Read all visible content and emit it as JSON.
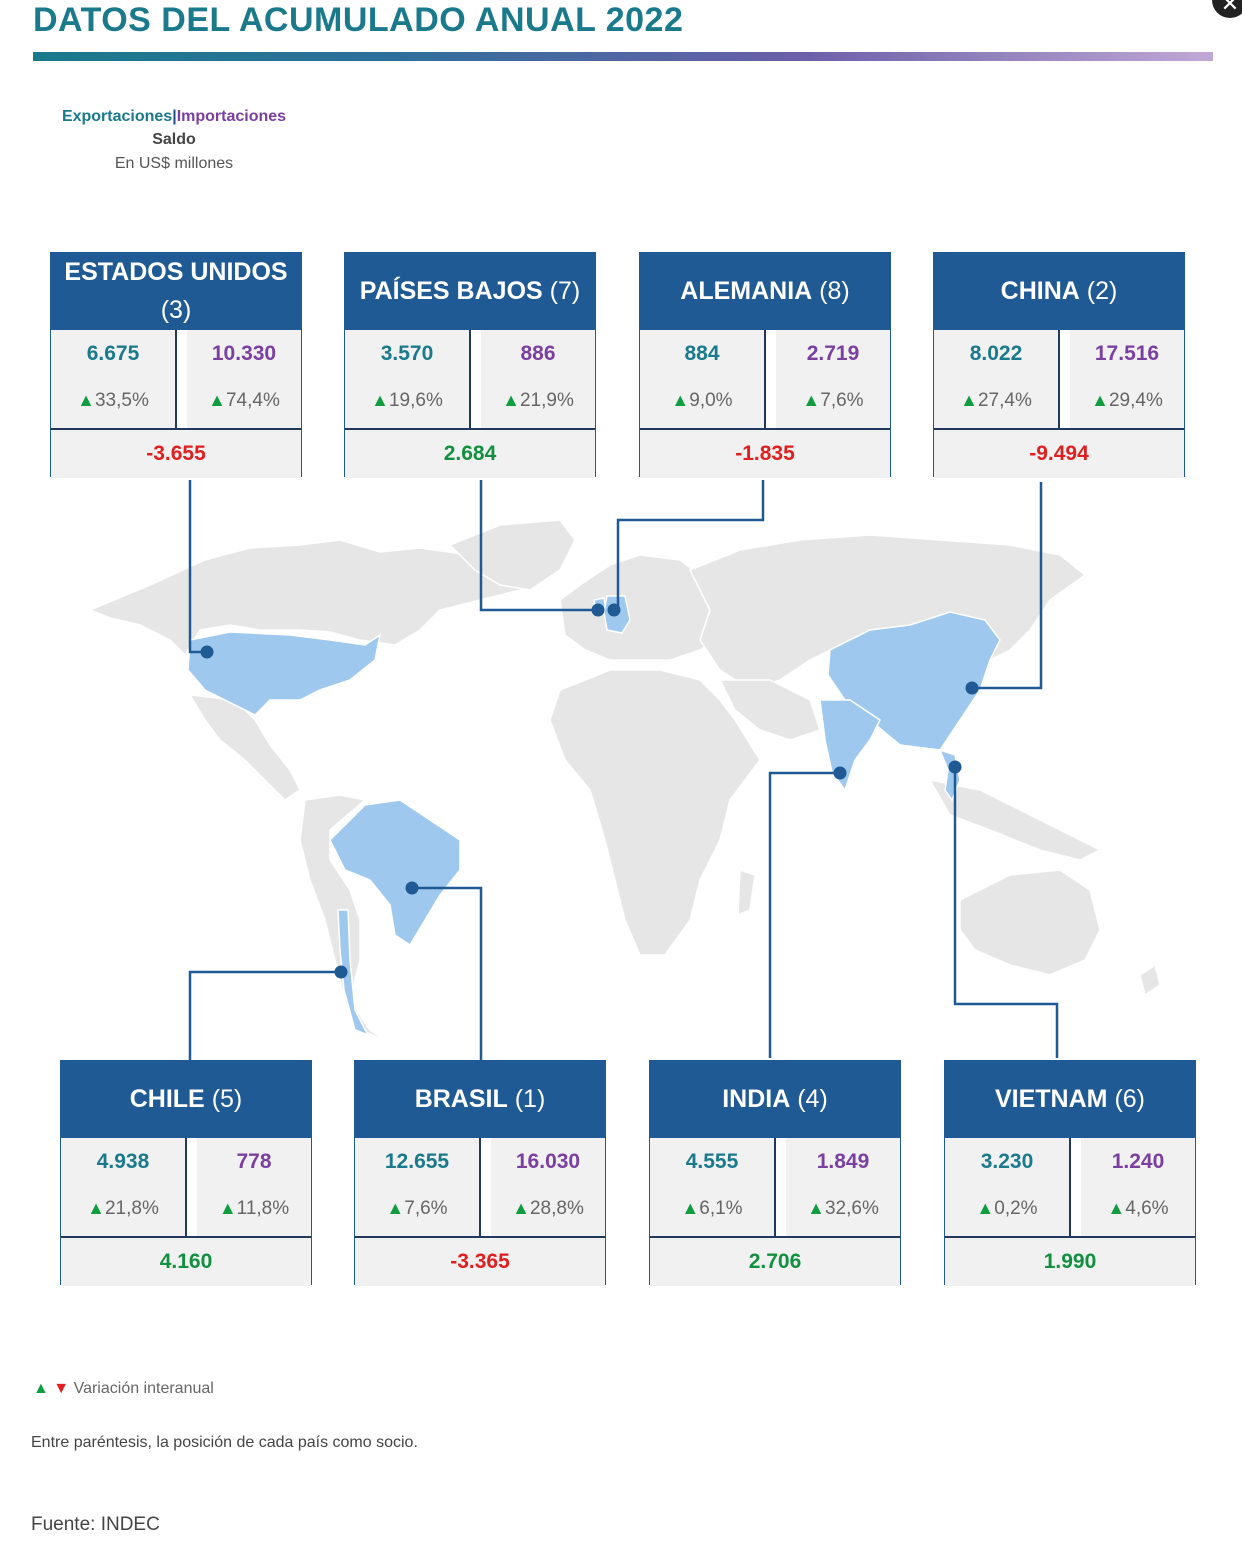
{
  "title": "DATOS DEL ACUMULADO ANUAL 2022",
  "legend": {
    "exports": "Exportaciones",
    "separator": "|",
    "imports": "Importaciones",
    "balance": "Saldo",
    "unit": "En US$ millones"
  },
  "countries": [
    {
      "name": "ESTADOS UNIDOS",
      "rank": "(3)",
      "exports": "6.675",
      "exports_var": "33,5%",
      "imports": "10.330",
      "imports_var": "74,4%",
      "balance": "-3.655",
      "balance_sign": "neg"
    },
    {
      "name": "PAÍSES BAJOS",
      "rank": "(7)",
      "exports": "3.570",
      "exports_var": "19,6%",
      "imports": "886",
      "imports_var": "21,9%",
      "balance": "2.684",
      "balance_sign": "pos"
    },
    {
      "name": "ALEMANIA",
      "rank": "(8)",
      "exports": "884",
      "exports_var": "9,0%",
      "imports": "2.719",
      "imports_var": "7,6%",
      "balance": "-1.835",
      "balance_sign": "neg"
    },
    {
      "name": "CHINA",
      "rank": "(2)",
      "exports": "8.022",
      "exports_var": "27,4%",
      "imports": "17.516",
      "imports_var": "29,4%",
      "balance": "-9.494",
      "balance_sign": "neg"
    },
    {
      "name": "CHILE",
      "rank": "(5)",
      "exports": "4.938",
      "exports_var": "21,8%",
      "imports": "778",
      "imports_var": "11,8%",
      "balance": "4.160",
      "balance_sign": "pos"
    },
    {
      "name": "BRASIL",
      "rank": "(1)",
      "exports": "12.655",
      "exports_var": "7,6%",
      "imports": "16.030",
      "imports_var": "28,8%",
      "balance": "-3.365",
      "balance_sign": "neg"
    },
    {
      "name": "INDIA",
      "rank": "(4)",
      "exports": "4.555",
      "exports_var": "6,1%",
      "imports": "1.849",
      "imports_var": "32,6%",
      "balance": "2.706",
      "balance_sign": "pos"
    },
    {
      "name": "VIETNAM",
      "rank": "(6)",
      "exports": "3.230",
      "exports_var": "0,2%",
      "imports": "1.240",
      "imports_var": "4,6%",
      "balance": "1.990",
      "balance_sign": "pos"
    }
  ],
  "symbols": {
    "up": "▲",
    "down": "▼",
    "close": "✕"
  },
  "footer": {
    "variation_note": "Variación interanual",
    "rank_note": "Entre paréntesis, la posición de cada país como socio.",
    "source": "Fuente: INDEC"
  },
  "colors": {
    "header_bg": "#1f5a94",
    "exports": "#1a7a8c",
    "imports": "#7b3fa0",
    "negative": "#e02020",
    "positive": "#12903f",
    "highlight_country": "#9ec8ee",
    "land": "#e6e6e6"
  }
}
